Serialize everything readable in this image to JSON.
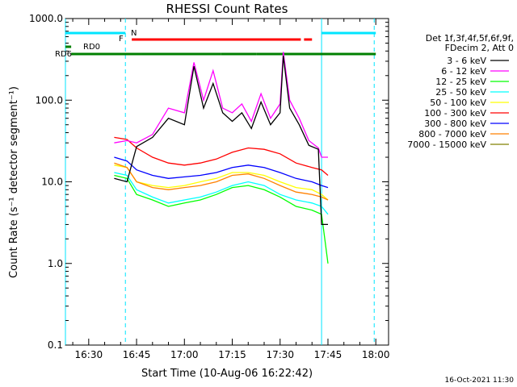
{
  "chart_data": {
    "type": "line",
    "title": "RHESSI Count Rates",
    "xlabel": "Start Time (10-Aug-06 16:22:42)",
    "ylabel": "Count Rate (s⁻¹ detector segment⁻¹)",
    "y_scale": "log",
    "ylim": [
      0.1,
      1000
    ],
    "xlim": [
      "16:22:42",
      "18:04:00"
    ],
    "x_ticks": [
      "16:30",
      "16:45",
      "17:00",
      "17:15",
      "17:30",
      "17:45",
      "18:00"
    ],
    "y_ticks": [
      "0.1",
      "1.0",
      "10.0",
      "100.0",
      "1000.0"
    ],
    "grid": false,
    "legend_position": "right",
    "legend_header": [
      "Det 1f,3f,4f,5f,6f,9f,",
      "FDecim 2, Att 0"
    ],
    "footer": "16-Oct-2021 11:30",
    "series": [
      {
        "name": "3 - 6 keV",
        "color": "#000000",
        "points": [
          [
            "16:38",
            11
          ],
          [
            "16:42",
            10
          ],
          [
            "16:45",
            27
          ],
          [
            "16:50",
            35
          ],
          [
            "16:55",
            60
          ],
          [
            "17:00",
            50
          ],
          [
            "17:03",
            260
          ],
          [
            "17:06",
            80
          ],
          [
            "17:09",
            160
          ],
          [
            "17:12",
            70
          ],
          [
            "17:15",
            55
          ],
          [
            "17:18",
            70
          ],
          [
            "17:21",
            45
          ],
          [
            "17:24",
            95
          ],
          [
            "17:27",
            50
          ],
          [
            "17:30",
            70
          ],
          [
            "17:31",
            350
          ],
          [
            "17:33",
            80
          ],
          [
            "17:36",
            50
          ],
          [
            "17:39",
            28
          ],
          [
            "17:42",
            25
          ],
          [
            "17:43",
            3
          ],
          [
            "17:45",
            3
          ]
        ]
      },
      {
        "name": "6 - 12 keV",
        "color": "#ff00ff",
        "points": [
          [
            "16:38",
            30
          ],
          [
            "16:42",
            32
          ],
          [
            "16:45",
            30
          ],
          [
            "16:50",
            38
          ],
          [
            "16:55",
            80
          ],
          [
            "17:00",
            70
          ],
          [
            "17:03",
            290
          ],
          [
            "17:06",
            100
          ],
          [
            "17:09",
            230
          ],
          [
            "17:12",
            80
          ],
          [
            "17:15",
            70
          ],
          [
            "17:18",
            90
          ],
          [
            "17:21",
            55
          ],
          [
            "17:24",
            120
          ],
          [
            "17:27",
            60
          ],
          [
            "17:30",
            90
          ],
          [
            "17:31",
            390
          ],
          [
            "17:33",
            100
          ],
          [
            "17:36",
            60
          ],
          [
            "17:39",
            32
          ],
          [
            "17:42",
            26
          ],
          [
            "17:43",
            20
          ],
          [
            "17:45",
            20
          ]
        ]
      },
      {
        "name": "12 - 25 keV",
        "color": "#00ff00",
        "points": [
          [
            "16:38",
            12
          ],
          [
            "16:42",
            11
          ],
          [
            "16:45",
            7
          ],
          [
            "16:50",
            6
          ],
          [
            "16:55",
            5
          ],
          [
            "17:00",
            5.5
          ],
          [
            "17:05",
            6
          ],
          [
            "17:10",
            7
          ],
          [
            "17:15",
            8.5
          ],
          [
            "17:20",
            9
          ],
          [
            "17:25",
            8
          ],
          [
            "17:30",
            6.5
          ],
          [
            "17:35",
            5
          ],
          [
            "17:40",
            4.5
          ],
          [
            "17:43",
            4
          ],
          [
            "17:45",
            1
          ]
        ]
      },
      {
        "name": "25 - 50 keV",
        "color": "#00ffff",
        "points": [
          [
            "16:38",
            13
          ],
          [
            "16:42",
            12
          ],
          [
            "16:45",
            8
          ],
          [
            "16:50",
            6.5
          ],
          [
            "16:55",
            5.5
          ],
          [
            "17:00",
            6
          ],
          [
            "17:05",
            6.5
          ],
          [
            "17:10",
            7.5
          ],
          [
            "17:15",
            9
          ],
          [
            "17:20",
            10
          ],
          [
            "17:25",
            9
          ],
          [
            "17:30",
            7
          ],
          [
            "17:35",
            6
          ],
          [
            "17:40",
            5.5
          ],
          [
            "17:43",
            5
          ],
          [
            "17:45",
            4
          ]
        ]
      },
      {
        "name": "50 - 100 keV",
        "color": "#ffff00",
        "points": [
          [
            "16:38",
            16
          ],
          [
            "16:42",
            15
          ],
          [
            "16:45",
            10
          ],
          [
            "16:50",
            9
          ],
          [
            "16:55",
            8.5
          ],
          [
            "17:00",
            9
          ],
          [
            "17:05",
            10
          ],
          [
            "17:10",
            11
          ],
          [
            "17:15",
            13
          ],
          [
            "17:20",
            13
          ],
          [
            "17:25",
            12
          ],
          [
            "17:30",
            10
          ],
          [
            "17:35",
            8.5
          ],
          [
            "17:40",
            8
          ],
          [
            "17:43",
            7
          ],
          [
            "17:45",
            6
          ]
        ]
      },
      {
        "name": "100 - 300 keV",
        "color": "#ff0000",
        "points": [
          [
            "16:38",
            35
          ],
          [
            "16:42",
            33
          ],
          [
            "16:45",
            26
          ],
          [
            "16:50",
            20
          ],
          [
            "16:55",
            17
          ],
          [
            "17:00",
            16
          ],
          [
            "17:05",
            17
          ],
          [
            "17:10",
            19
          ],
          [
            "17:15",
            23
          ],
          [
            "17:20",
            26
          ],
          [
            "17:25",
            25
          ],
          [
            "17:30",
            22
          ],
          [
            "17:35",
            17
          ],
          [
            "17:40",
            15
          ],
          [
            "17:43",
            14
          ],
          [
            "17:45",
            12
          ]
        ]
      },
      {
        "name": "300 - 800 keV",
        "color": "#0000ff",
        "points": [
          [
            "16:38",
            20
          ],
          [
            "16:42",
            18
          ],
          [
            "16:45",
            14
          ],
          [
            "16:50",
            12
          ],
          [
            "16:55",
            11
          ],
          [
            "17:00",
            11.5
          ],
          [
            "17:05",
            12
          ],
          [
            "17:10",
            13
          ],
          [
            "17:15",
            15
          ],
          [
            "17:20",
            16
          ],
          [
            "17:25",
            15
          ],
          [
            "17:30",
            13
          ],
          [
            "17:35",
            11
          ],
          [
            "17:40",
            10
          ],
          [
            "17:43",
            9
          ],
          [
            "17:45",
            8.5
          ]
        ]
      },
      {
        "name": "800 - 7000 keV",
        "color": "#ff8000",
        "points": [
          [
            "16:38",
            17
          ],
          [
            "16:42",
            15
          ],
          [
            "16:45",
            10
          ],
          [
            "16:50",
            8.5
          ],
          [
            "16:55",
            8
          ],
          [
            "17:00",
            8.5
          ],
          [
            "17:05",
            9
          ],
          [
            "17:10",
            10
          ],
          [
            "17:15",
            12
          ],
          [
            "17:20",
            12.5
          ],
          [
            "17:25",
            11
          ],
          [
            "17:30",
            9
          ],
          [
            "17:35",
            7.5
          ],
          [
            "17:40",
            7
          ],
          [
            "17:43",
            6.5
          ],
          [
            "17:45",
            6
          ]
        ]
      },
      {
        "name": "7000 - 15000 keV",
        "color": "#808000",
        "points": []
      }
    ],
    "status_bars": [
      {
        "label": "N",
        "color": "#00e5ff",
        "segments": [
          [
            "16:22:42",
            "16:41:30"
          ],
          [
            "17:43:00",
            "18:00:00"
          ]
        ]
      },
      {
        "label": "F",
        "color": "#ff0000",
        "segments": [
          [
            "16:43:30",
            "17:36:30"
          ],
          [
            "17:37:30",
            "17:40:00"
          ]
        ]
      },
      {
        "label": "RD0",
        "color": "#008000",
        "segments": [
          [
            "16:22:42",
            "16:24:30"
          ]
        ]
      },
      {
        "label": "RD6",
        "color": "#008000",
        "segments": [
          [
            "16:24:30",
            "16:46:30"
          ],
          [
            "16:46:30",
            "17:11:30"
          ],
          [
            "17:11:30",
            "17:22:30"
          ],
          [
            "17:22:30",
            "18:00:00"
          ]
        ]
      }
    ],
    "markers": [
      {
        "time": "16:22:42",
        "color": "#00e5ff",
        "style": "solid"
      },
      {
        "time": "16:41:30",
        "color": "#00e5ff",
        "style": "dashed"
      },
      {
        "time": "17:43:00",
        "color": "#00e5ff",
        "style": "solid"
      },
      {
        "time": "17:59:30",
        "color": "#00e5ff",
        "style": "dashed"
      }
    ]
  }
}
